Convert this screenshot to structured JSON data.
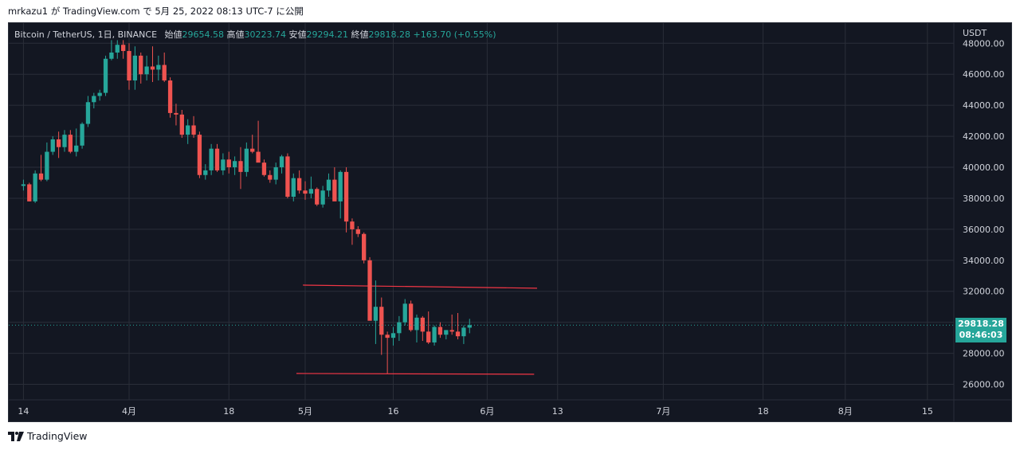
{
  "publish_line": "mrkazu1 が TradingView.com で 5月 25, 2022 08:13 UTC-7 に公開",
  "legend": {
    "symbol": "Bitcoin / TetherUS, 1日, BINANCE",
    "open_label": "始値",
    "open": "29654.58",
    "high_label": "高値",
    "high": "30223.74",
    "low_label": "安値",
    "low": "29294.21",
    "close_label": "終値",
    "close": "29818.28",
    "change": "+163.70 (+0.55%)"
  },
  "currency": "USDT",
  "price_tag": {
    "price": "29818.28",
    "countdown": "08:46:03"
  },
  "footer_brand": "TradingView",
  "colors": {
    "up": "#26a69a",
    "down": "#ef5350",
    "background": "#131722",
    "grid": "#2a2e39",
    "axis_text": "#d1d4dc",
    "trendline": "#f23645"
  },
  "chart_data": {
    "type": "candlestick",
    "ylim": [
      25000,
      49300
    ],
    "y_ticks": [
      26000,
      28000,
      30000,
      32000,
      34000,
      36000,
      38000,
      40000,
      42000,
      44000,
      46000,
      48000
    ],
    "y_tick_labels": [
      "26000.00",
      "28000.00",
      "30000.00",
      "32000.00",
      "34000.00",
      "36000.00",
      "38000.00",
      "40000.00",
      "42000.00",
      "44000.00",
      "46000.00",
      "48000.00"
    ],
    "x_ticks": [
      {
        "day": 0,
        "label": "14"
      },
      {
        "day": 18,
        "label": "4月"
      },
      {
        "day": 35,
        "label": "18"
      },
      {
        "day": 48,
        "label": "5月"
      },
      {
        "day": 63,
        "label": "16"
      },
      {
        "day": 79,
        "label": "6月"
      },
      {
        "day": 91,
        "label": "13"
      },
      {
        "day": 109,
        "label": "7月"
      },
      {
        "day": 126,
        "label": "18"
      },
      {
        "day": 140,
        "label": "8月"
      },
      {
        "day": 154,
        "label": "15"
      }
    ],
    "xlim_days": [
      -2.5,
      158.5
    ],
    "last_price": 29818.28,
    "candles": [
      [
        38800,
        39200,
        38500,
        38900
      ],
      [
        38900,
        39000,
        37800,
        37800
      ],
      [
        37800,
        39800,
        37700,
        39600
      ],
      [
        39600,
        40800,
        39100,
        39200
      ],
      [
        39200,
        41600,
        39100,
        41000
      ],
      [
        41000,
        42000,
        40800,
        41800
      ],
      [
        41800,
        42300,
        40600,
        41300
      ],
      [
        41300,
        42400,
        41000,
        42100
      ],
      [
        42100,
        42400,
        40900,
        41000
      ],
      [
        41000,
        42500,
        40700,
        41400
      ],
      [
        41400,
        42900,
        41200,
        42800
      ],
      [
        42800,
        44600,
        42600,
        44200
      ],
      [
        44200,
        44800,
        43800,
        44600
      ],
      [
        44600,
        45000,
        44300,
        44800
      ],
      [
        44800,
        47200,
        44600,
        47000
      ],
      [
        47000,
        48200,
        46900,
        47400
      ],
      [
        47400,
        48200,
        47000,
        47900
      ],
      [
        47900,
        48200,
        47000,
        47500
      ],
      [
        47500,
        48000,
        45000,
        45600
      ],
      [
        45600,
        47800,
        45000,
        47200
      ],
      [
        47200,
        47400,
        45400,
        46000
      ],
      [
        46000,
        47200,
        45600,
        46500
      ],
      [
        46500,
        47800,
        45500,
        46300
      ],
      [
        46300,
        47200,
        45600,
        46600
      ],
      [
        46600,
        47400,
        45500,
        45600
      ],
      [
        45600,
        45800,
        43200,
        43500
      ],
      [
        43500,
        44100,
        42700,
        43400
      ],
      [
        43400,
        43700,
        41900,
        42100
      ],
      [
        42100,
        43100,
        41500,
        42700
      ],
      [
        42700,
        43300,
        41900,
        42100
      ],
      [
        42100,
        42300,
        39300,
        39500
      ],
      [
        39500,
        40200,
        39200,
        39800
      ],
      [
        39800,
        41500,
        39500,
        41200
      ],
      [
        41200,
        41500,
        39700,
        39800
      ],
      [
        39800,
        40900,
        39500,
        40500
      ],
      [
        40500,
        41000,
        39600,
        40000
      ],
      [
        40000,
        40700,
        39500,
        40400
      ],
      [
        40400,
        41300,
        38600,
        39700
      ],
      [
        39700,
        41600,
        39400,
        41200
      ],
      [
        41200,
        42100,
        40900,
        41000
      ],
      [
        41000,
        43000,
        40400,
        40300
      ],
      [
        40300,
        40500,
        39400,
        39500
      ],
      [
        39500,
        39800,
        39000,
        39200
      ],
      [
        39200,
        40300,
        38900,
        40000
      ],
      [
        40000,
        40800,
        39600,
        40700
      ],
      [
        40700,
        40900,
        38000,
        38100
      ],
      [
        38100,
        39600,
        37800,
        39300
      ],
      [
        39300,
        39800,
        38300,
        38500
      ],
      [
        38500,
        39100,
        37900,
        38300
      ],
      [
        38300,
        39400,
        38000,
        38600
      ],
      [
        38600,
        38700,
        37500,
        37600
      ],
      [
        37600,
        38800,
        37400,
        38500
      ],
      [
        38500,
        39600,
        38100,
        39200
      ],
      [
        39200,
        40000,
        38000,
        37800
      ],
      [
        37800,
        39800,
        36700,
        39700
      ],
      [
        39700,
        40000,
        35800,
        36500
      ],
      [
        36500,
        36700,
        35000,
        36000
      ],
      [
        36000,
        36200,
        35500,
        35700
      ],
      [
        35700,
        35800,
        33800,
        34000
      ],
      [
        34000,
        34200,
        30300,
        30100
      ],
      [
        30100,
        32700,
        28600,
        31000
      ],
      [
        31000,
        31600,
        27900,
        29200
      ],
      [
        29200,
        29400,
        26700,
        29000
      ],
      [
        29000,
        29700,
        28500,
        29300
      ],
      [
        29300,
        30400,
        28800,
        30000
      ],
      [
        30000,
        31500,
        29800,
        31200
      ],
      [
        31200,
        31400,
        29400,
        29500
      ],
      [
        29500,
        30500,
        28700,
        30300
      ],
      [
        30300,
        30400,
        28800,
        29400
      ],
      [
        29400,
        30700,
        28600,
        28700
      ],
      [
        28700,
        29800,
        28500,
        29700
      ],
      [
        29700,
        30000,
        29000,
        29200
      ],
      [
        29200,
        29500,
        28900,
        29500
      ],
      [
        29500,
        30500,
        29200,
        29400
      ],
      [
        29400,
        30600,
        28900,
        29100
      ],
      [
        29100,
        29800,
        28600,
        29654.58
      ],
      [
        29654.58,
        30223.74,
        29294.21,
        29818.28
      ]
    ],
    "trendlines": [
      {
        "x1": 47.6,
        "y1": 32400,
        "x2": 87.5,
        "y2": 32200
      },
      {
        "x1": 46.5,
        "y1": 26700,
        "x2": 87.0,
        "y2": 26650
      }
    ]
  }
}
